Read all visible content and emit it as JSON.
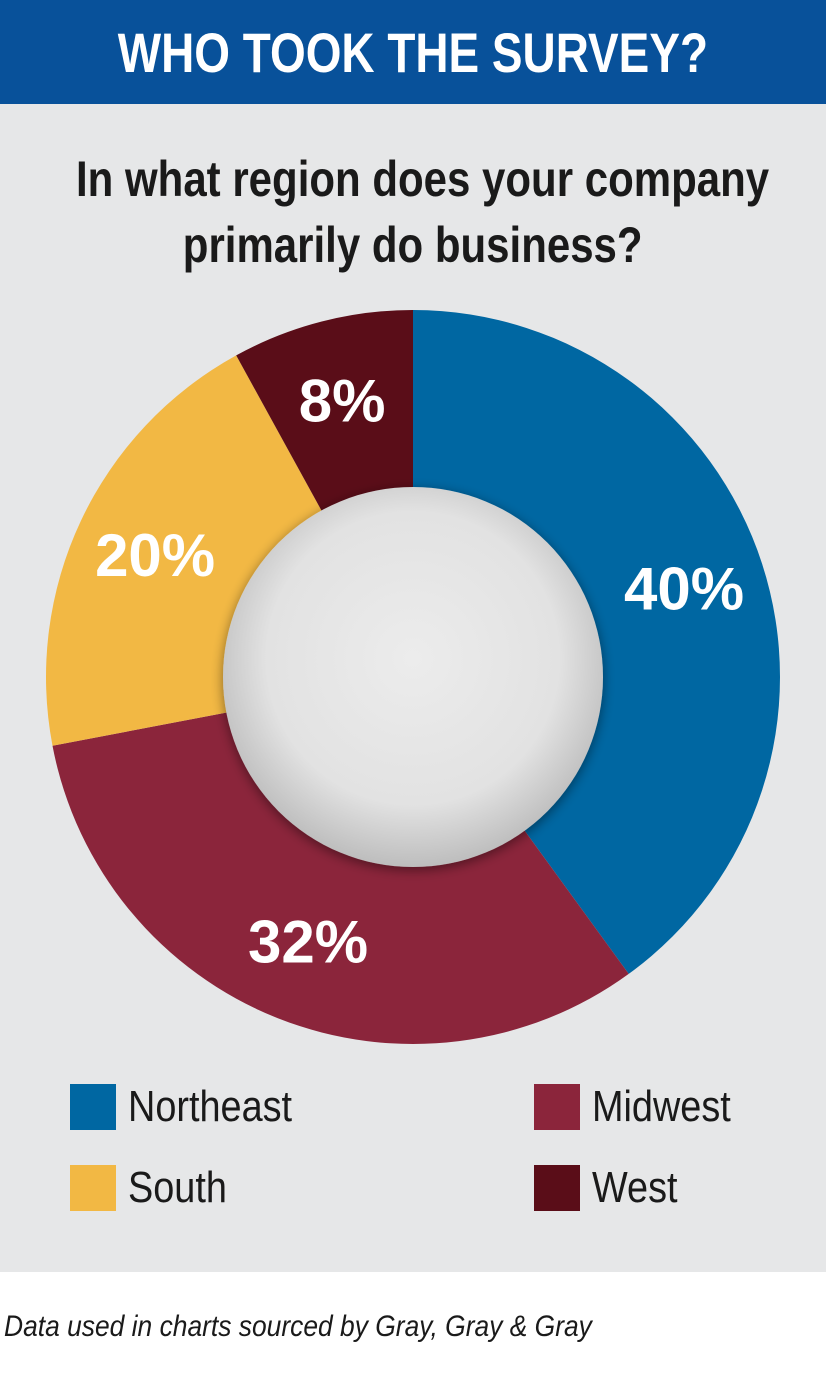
{
  "header": {
    "title": "WHO TOOK THE SURVEY?"
  },
  "question": "In what region does your company primarily do business?",
  "question_lines": [
    "In what region does your company",
    "primarily do business?"
  ],
  "colors": {
    "header_bg": "#08519a",
    "panel_bg": "#e6e7e8",
    "northeast": "#0067a2",
    "midwest": "#8b253b",
    "south": "#f2b844",
    "west": "#5a0d18"
  },
  "chart_data": {
    "type": "pie",
    "variant": "donut",
    "title": "In what region does your company primarily do business?",
    "series": [
      {
        "name": "Northeast",
        "value": 40,
        "label": "40%",
        "color": "#0067a2"
      },
      {
        "name": "Midwest",
        "value": 32,
        "label": "32%",
        "color": "#8b253b"
      },
      {
        "name": "South",
        "value": 20,
        "label": "20%",
        "color": "#f2b844"
      },
      {
        "name": "West",
        "value": 8,
        "label": "8%",
        "color": "#5a0d18"
      }
    ],
    "legend_position": "bottom"
  },
  "source": "Data used in charts sourced by Gray, Gray & Gray"
}
